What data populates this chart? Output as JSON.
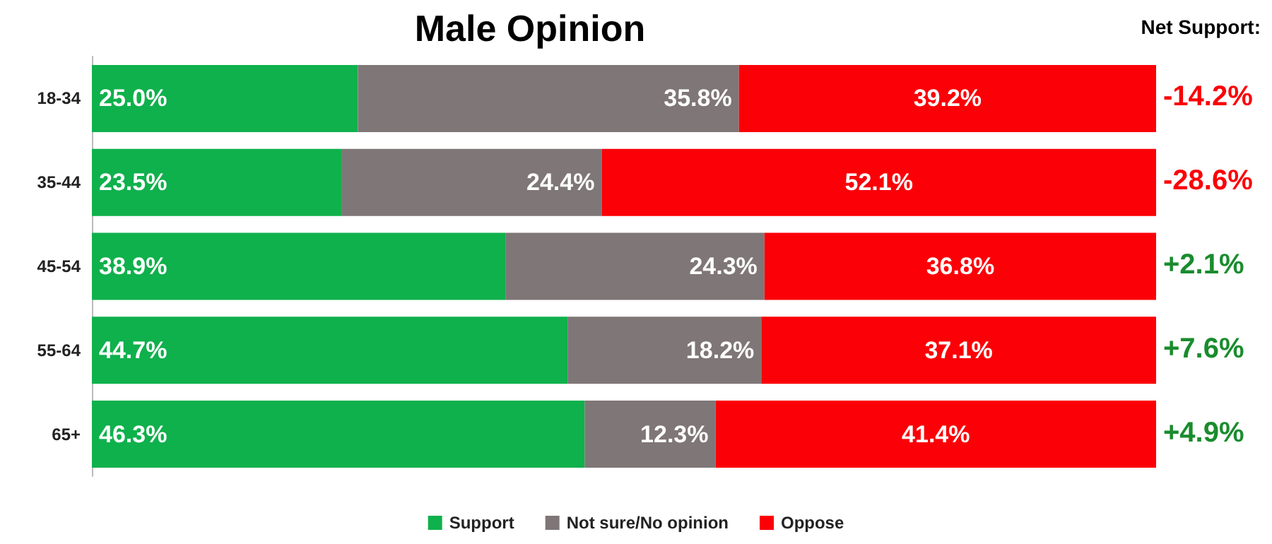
{
  "chart_data": {
    "type": "bar",
    "title": "Male Opinion",
    "orientation": "horizontal",
    "stacked": true,
    "categories": [
      "18-34",
      "35-44",
      "45-54",
      "55-64",
      "65+"
    ],
    "series": [
      {
        "name": "Support",
        "color": "#0fb14c",
        "values": [
          25.0,
          23.5,
          38.9,
          44.7,
          46.3
        ],
        "value_labels": [
          "25.0%",
          "23.5%",
          "38.9%",
          "44.7%",
          "46.3%"
        ]
      },
      {
        "name": "Not sure/No opinion",
        "color": "#7f7677",
        "values": [
          35.8,
          24.4,
          24.3,
          18.2,
          12.3
        ],
        "value_labels": [
          "35.8%",
          "24.4%",
          "24.3%",
          "18.2%",
          "12.3%"
        ]
      },
      {
        "name": "Oppose",
        "color": "#fb0007",
        "values": [
          39.2,
          52.1,
          36.8,
          37.1,
          41.4
        ],
        "value_labels": [
          "39.2%",
          "52.1%",
          "36.8%",
          "37.1%",
          "41.4%"
        ]
      }
    ],
    "xlim": [
      0,
      100
    ],
    "tick_labels": "y",
    "grid": false,
    "legend": "bottom",
    "annotations": [
      "Net Support:",
      "-14.2%",
      "-28.6%",
      "+2.1%",
      "+7.6%",
      "+4.9%"
    ]
  }
}
